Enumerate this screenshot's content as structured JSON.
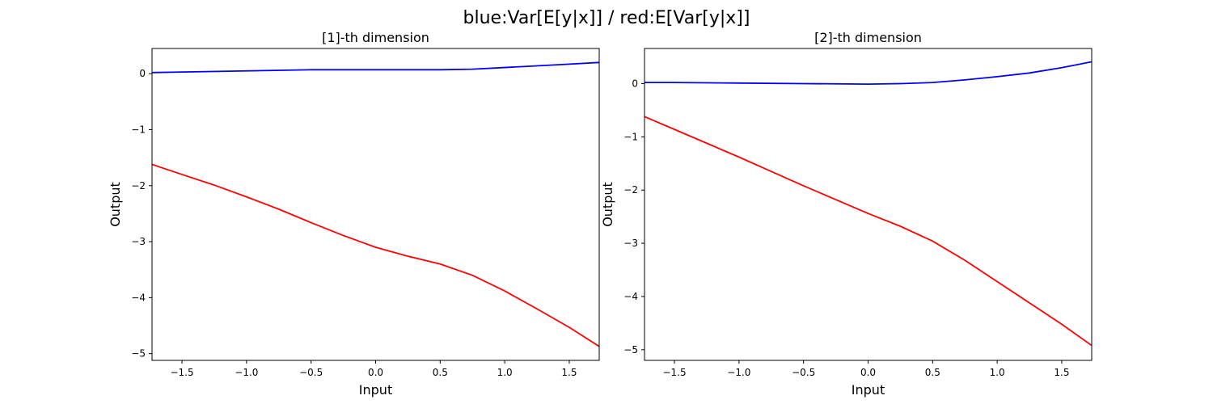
{
  "suptitle": "blue:Var[E[y|x]] / red:E[Var[y|x]]",
  "chart_data": [
    {
      "type": "line",
      "title": "[1]-th dimension",
      "xlabel": "Input",
      "ylabel": "Output",
      "xlim": [
        -1.732,
        1.732
      ],
      "ylim": [
        -5.12,
        0.45
      ],
      "xticks": [
        -1.5,
        -1.0,
        -0.5,
        0.0,
        0.5,
        1.0,
        1.5
      ],
      "xtick_labels": [
        "−1.5",
        "−1.0",
        "−0.5",
        "0.0",
        "0.5",
        "1.0",
        "1.5"
      ],
      "yticks": [
        0,
        -1,
        -2,
        -3,
        -4,
        -5
      ],
      "ytick_labels": [
        "0",
        "−1",
        "−2",
        "−3",
        "−4",
        "−5"
      ],
      "grid": false,
      "series": [
        {
          "color": "#0000ff",
          "x": [
            -1.732,
            -1.5,
            -1.0,
            -0.5,
            0.0,
            0.3,
            0.5,
            0.75,
            1.0,
            1.25,
            1.5,
            1.732
          ],
          "y": [
            0.02,
            0.03,
            0.05,
            0.07,
            0.07,
            0.07,
            0.07,
            0.08,
            0.11,
            0.14,
            0.17,
            0.2
          ]
        },
        {
          "color": "#ff0000",
          "x": [
            -1.732,
            -1.5,
            -1.25,
            -1.0,
            -0.75,
            -0.5,
            -0.25,
            0.0,
            0.25,
            0.5,
            0.75,
            1.0,
            1.25,
            1.5,
            1.732
          ],
          "y": [
            -1.62,
            -1.8,
            -1.99,
            -2.2,
            -2.42,
            -2.66,
            -2.89,
            -3.1,
            -3.26,
            -3.4,
            -3.6,
            -3.88,
            -4.2,
            -4.53,
            -4.87
          ]
        }
      ]
    },
    {
      "type": "line",
      "title": "[2]-th dimension",
      "xlabel": "Input",
      "ylabel": "Output",
      "xlim": [
        -1.732,
        1.732
      ],
      "ylim": [
        -5.2,
        0.66
      ],
      "xticks": [
        -1.5,
        -1.0,
        -0.5,
        0.0,
        0.5,
        1.0,
        1.5
      ],
      "xtick_labels": [
        "−1.5",
        "−1.0",
        "−0.5",
        "0.0",
        "0.5",
        "1.0",
        "1.5"
      ],
      "yticks": [
        0,
        -1,
        -2,
        -3,
        -4,
        -5
      ],
      "ytick_labels": [
        "0",
        "−1",
        "−2",
        "−3",
        "−4",
        "−5"
      ],
      "grid": false,
      "series": [
        {
          "color": "#0000ff",
          "x": [
            -1.732,
            -1.5,
            -1.0,
            -0.5,
            0.0,
            0.25,
            0.5,
            0.75,
            1.0,
            1.25,
            1.5,
            1.732
          ],
          "y": [
            0.02,
            0.02,
            0.01,
            0.0,
            -0.01,
            0.0,
            0.02,
            0.07,
            0.13,
            0.2,
            0.3,
            0.41
          ]
        },
        {
          "color": "#ff0000",
          "x": [
            -1.732,
            -1.5,
            -1.25,
            -1.0,
            -0.75,
            -0.5,
            -0.25,
            0.0,
            0.25,
            0.5,
            0.75,
            1.0,
            1.25,
            1.5,
            1.732
          ],
          "y": [
            -0.62,
            -0.86,
            -1.12,
            -1.38,
            -1.65,
            -1.92,
            -2.18,
            -2.44,
            -2.68,
            -2.96,
            -3.32,
            -3.72,
            -4.12,
            -4.52,
            -4.92
          ]
        }
      ]
    }
  ]
}
